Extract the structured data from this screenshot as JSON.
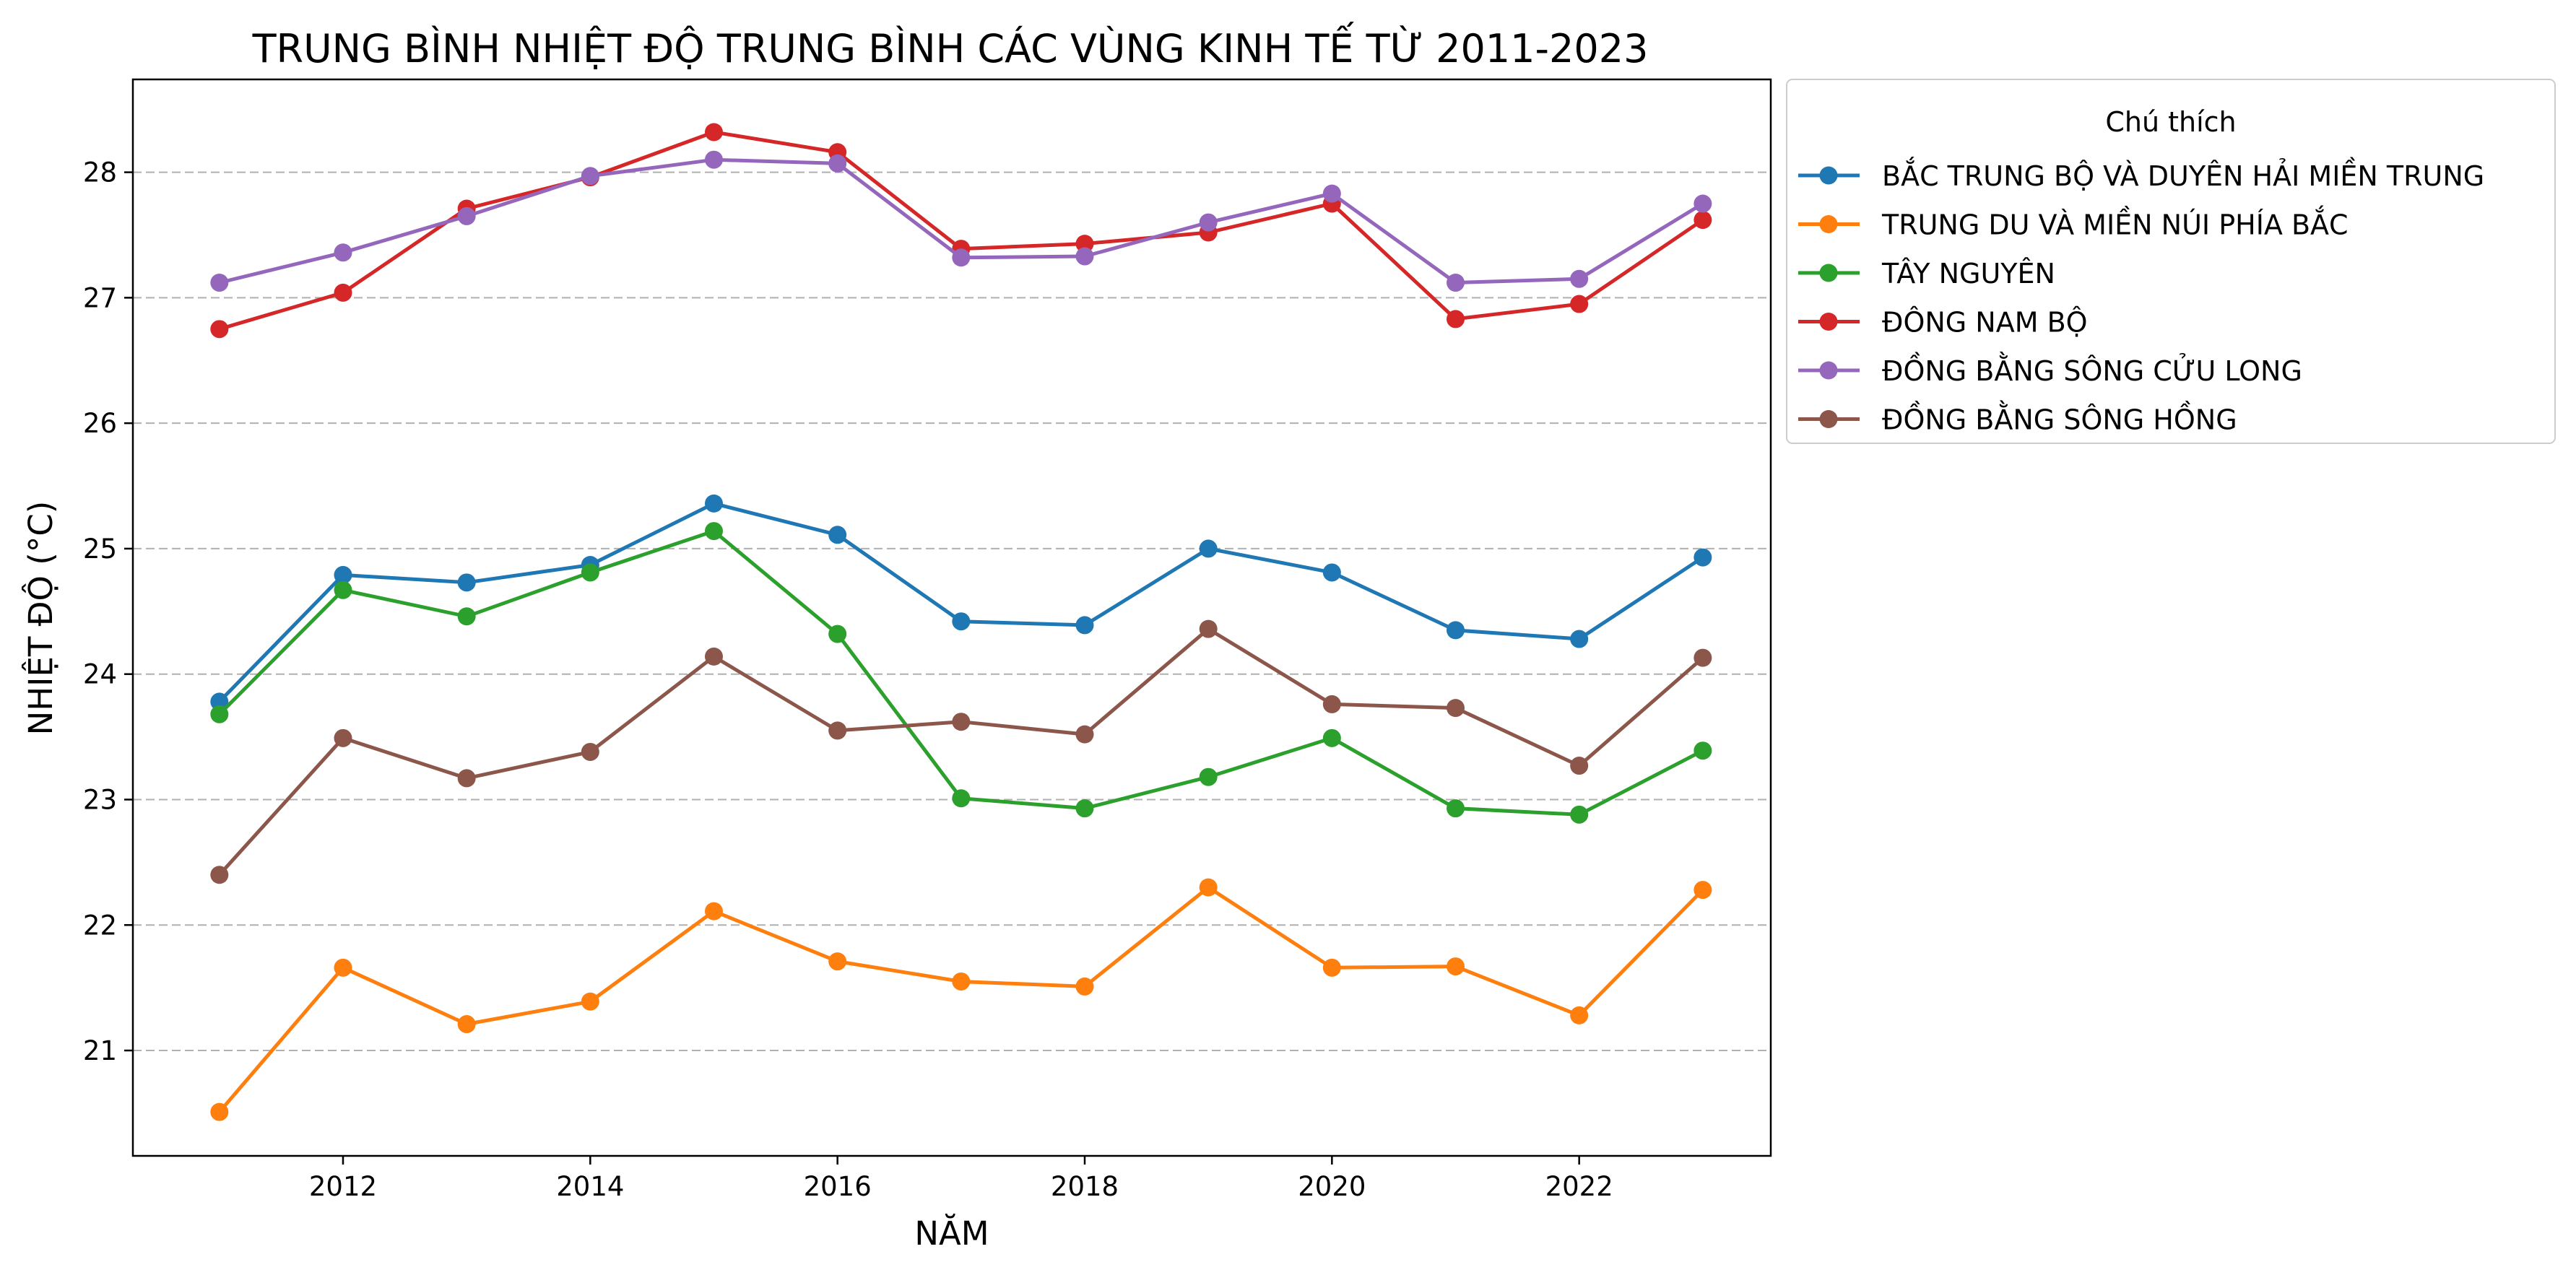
{
  "chart_data": {
    "type": "line",
    "title": "TRUNG BÌNH NHIỆT ĐỘ TRUNG BÌNH CÁC VÙNG KINH TẾ TỪ 2011-2023",
    "xlabel": "NĂM",
    "ylabel": "NHIỆT ĐỘ (°C)",
    "x": [
      2011,
      2012,
      2013,
      2014,
      2015,
      2016,
      2017,
      2018,
      2019,
      2020,
      2021,
      2022,
      2023
    ],
    "xlim": [
      2010.3,
      2023.55
    ],
    "ylim": [
      20.16,
      28.74
    ],
    "xticks": [
      2012,
      2014,
      2016,
      2018,
      2020,
      2022
    ],
    "yticks": [
      21,
      22,
      23,
      24,
      25,
      26,
      27,
      28
    ],
    "grid": "y-dashed",
    "legend": {
      "title": "Chú thích",
      "placement": "outside-upper-right"
    },
    "series": [
      {
        "name": "BẮC TRUNG BỘ VÀ DUYÊN HẢI MIỀN TRUNG",
        "color": "#1f77b4",
        "values": [
          23.78,
          24.79,
          24.73,
          24.87,
          25.36,
          25.11,
          24.42,
          24.39,
          25.0,
          24.81,
          24.35,
          24.28,
          24.93
        ]
      },
      {
        "name": "TRUNG DU VÀ MIỀN NÚI PHÍA BẮC",
        "color": "#ff7f0e",
        "values": [
          20.51,
          21.66,
          21.21,
          21.39,
          22.11,
          21.71,
          21.55,
          21.51,
          22.3,
          21.66,
          21.67,
          21.28,
          22.28
        ]
      },
      {
        "name": "TÂY NGUYÊN",
        "color": "#2ca02c",
        "values": [
          23.68,
          24.67,
          24.46,
          24.81,
          25.14,
          24.32,
          23.01,
          22.93,
          23.18,
          23.49,
          22.93,
          22.88,
          23.39
        ]
      },
      {
        "name": "ĐÔNG NAM BỘ",
        "color": "#d62728",
        "values": [
          26.75,
          27.04,
          27.71,
          27.96,
          28.32,
          28.16,
          27.39,
          27.43,
          27.52,
          27.75,
          26.83,
          26.95,
          27.62
        ]
      },
      {
        "name": "ĐỒNG BẰNG SÔNG CỬU LONG",
        "color": "#9467bd",
        "values": [
          27.12,
          27.36,
          27.65,
          27.97,
          28.1,
          28.07,
          27.32,
          27.33,
          27.6,
          27.83,
          27.12,
          27.15,
          27.75
        ]
      },
      {
        "name": "ĐỒNG BẰNG SÔNG HỒNG",
        "color": "#8c564b",
        "values": [
          22.4,
          23.49,
          23.17,
          23.38,
          24.14,
          23.55,
          23.62,
          23.52,
          24.36,
          23.76,
          23.73,
          23.27,
          24.13
        ]
      }
    ]
  }
}
